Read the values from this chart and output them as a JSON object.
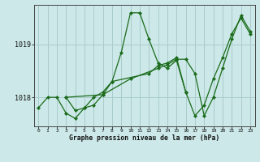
{
  "title": "Graphe pression niveau de la mer (hPa)",
  "bg_color": "#cce8e8",
  "grid_color": "#aacccc",
  "line_color": "#1a6b1a",
  "x_min": -0.5,
  "x_max": 23.5,
  "y_min": 1017.45,
  "y_max": 1019.75,
  "yticks": [
    1018,
    1019
  ],
  "ytick_labels": [
    "1018",
    "1019"
  ],
  "xticks": [
    0,
    1,
    2,
    3,
    4,
    5,
    6,
    7,
    8,
    9,
    10,
    11,
    12,
    13,
    14,
    15,
    16,
    17,
    18,
    19,
    20,
    21,
    22,
    23
  ],
  "series": [
    {
      "x": [
        0,
        1,
        2,
        3,
        4,
        5,
        6,
        7,
        8,
        9,
        10,
        11,
        12,
        13,
        14,
        15,
        16
      ],
      "y": [
        1017.8,
        1018.0,
        1018.0,
        1017.7,
        1017.6,
        1017.8,
        1018.0,
        1018.1,
        1018.3,
        1018.85,
        1019.6,
        1019.6,
        1019.1,
        1018.65,
        1018.55,
        1018.7,
        1018.1
      ]
    },
    {
      "x": [
        3,
        4,
        5,
        6,
        7,
        8,
        12,
        13,
        14,
        15,
        16,
        17,
        18,
        19,
        20,
        21,
        22,
        23
      ],
      "y": [
        1018.0,
        1017.75,
        1017.8,
        1017.85,
        1018.05,
        1018.3,
        1018.45,
        1018.6,
        1018.65,
        1018.75,
        1018.1,
        1017.65,
        1017.85,
        1018.35,
        1018.75,
        1019.2,
        1019.5,
        1019.2
      ]
    },
    {
      "x": [
        3,
        7,
        10,
        13,
        14,
        15,
        16,
        17,
        18,
        19,
        20,
        21,
        22,
        23
      ],
      "y": [
        1018.0,
        1018.05,
        1018.35,
        1018.55,
        1018.62,
        1018.72,
        1018.72,
        1018.45,
        1017.65,
        1018.0,
        1018.55,
        1019.1,
        1019.55,
        1019.25
      ]
    }
  ]
}
